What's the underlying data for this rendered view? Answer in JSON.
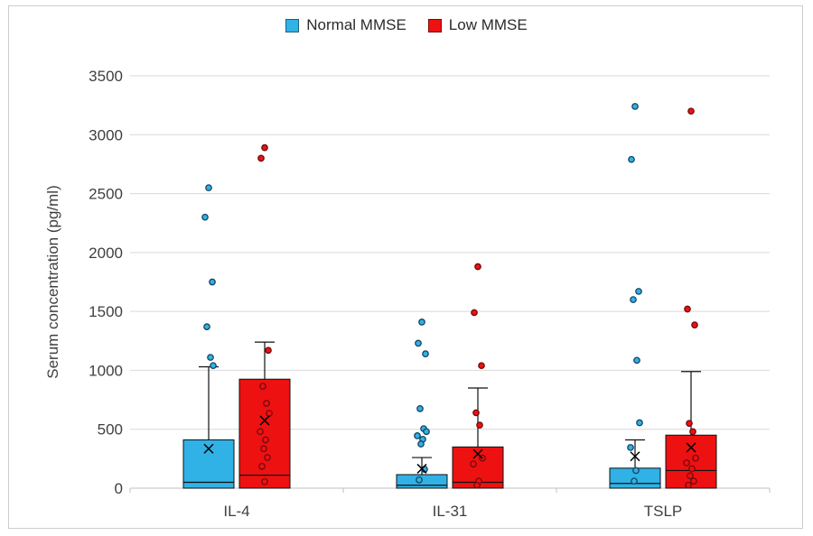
{
  "frame": {
    "border_color": "#cccccc",
    "background": "#ffffff"
  },
  "chart_data": {
    "type": "bar",
    "title": "",
    "xlabel": "",
    "ylabel": "Serum concentration (pg/ml)",
    "ylim": [
      0,
      3500
    ],
    "yticks": [
      0,
      500,
      1000,
      1500,
      2000,
      2500,
      3000,
      3500
    ],
    "grid": true,
    "legend_position": "top-center",
    "categories": [
      "IL-4",
      "IL-31",
      "TSLP"
    ],
    "marker_legend": {
      "bar": "group value",
      "whisker": "upper error bar",
      "x_marker": "mean",
      "line": "median",
      "dots": "individual subjects"
    },
    "series": [
      {
        "name": "Normal MMSE",
        "fill": "#30b2e6",
        "point_stroke": "#154360",
        "bar_values": [
          410,
          115,
          170
        ],
        "median_values": [
          50,
          25,
          40
        ],
        "whisker_high": [
          1030,
          260,
          410
        ],
        "mean_values": [
          335,
          165,
          270
        ],
        "points": [
          [
            2550,
            2300,
            1750,
            1370,
            1110,
            1040
          ],
          [
            1410,
            1230,
            1140,
            675,
            505,
            480,
            445,
            415,
            375,
            160,
            70
          ],
          [
            3240,
            2790,
            1670,
            1600,
            1085,
            555,
            345,
            150,
            60
          ]
        ]
      },
      {
        "name": "Low MMSE",
        "fill": "#ee1111",
        "point_stroke": "#6e0b0e",
        "bar_values": [
          925,
          350,
          450
        ],
        "median_values": [
          110,
          50,
          150
        ],
        "whisker_high": [
          1240,
          850,
          990
        ],
        "mean_values": [
          575,
          290,
          345
        ],
        "points": [
          [
            2890,
            2800,
            1170,
            865,
            720,
            635,
            480,
            410,
            335,
            260,
            185,
            55
          ],
          [
            1880,
            1490,
            1040,
            640,
            535,
            255,
            205,
            60,
            25
          ],
          [
            3200,
            1520,
            1385,
            550,
            480,
            255,
            215,
            165,
            105,
            60,
            25
          ]
        ]
      }
    ]
  }
}
